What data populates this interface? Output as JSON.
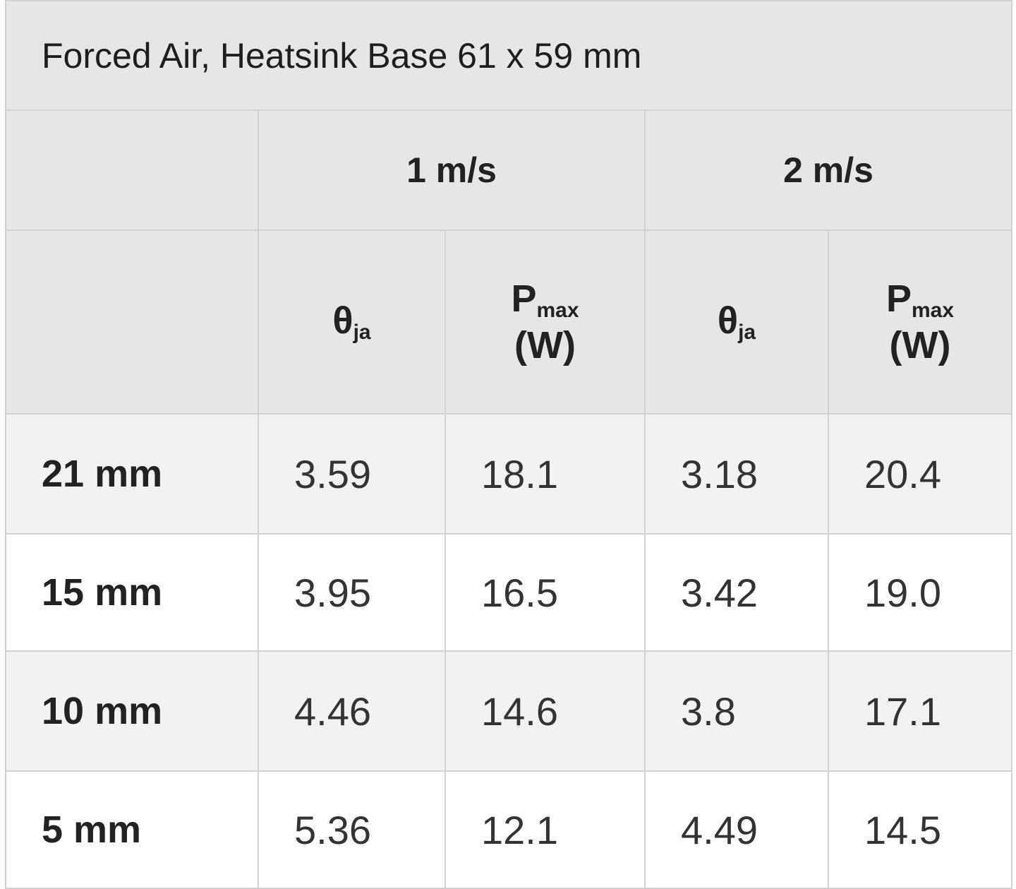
{
  "table": {
    "title": "Forced Air, Heatsink Base 61 x 59 mm",
    "groups": [
      "1 m/s",
      "2 m/s"
    ],
    "columns": [
      {
        "symbol": "θ",
        "subscript": "ja"
      },
      {
        "symbol": "P",
        "subscript": "max",
        "unit": "(W)"
      },
      {
        "symbol": "θ",
        "subscript": "ja"
      },
      {
        "symbol": "P",
        "subscript": "max",
        "unit": "(W)"
      }
    ],
    "rows": [
      {
        "label": "21 mm",
        "cells": [
          "3.59",
          "18.1",
          "3.18",
          "20.4"
        ]
      },
      {
        "label": "15 mm",
        "cells": [
          "3.95",
          "16.5",
          "3.42",
          "19.0"
        ]
      },
      {
        "label": "10 mm",
        "cells": [
          "4.46",
          "14.6",
          "3.8",
          "17.1"
        ]
      },
      {
        "label": "5 mm",
        "cells": [
          "5.36",
          "12.1",
          "4.49",
          "14.5"
        ]
      }
    ]
  }
}
